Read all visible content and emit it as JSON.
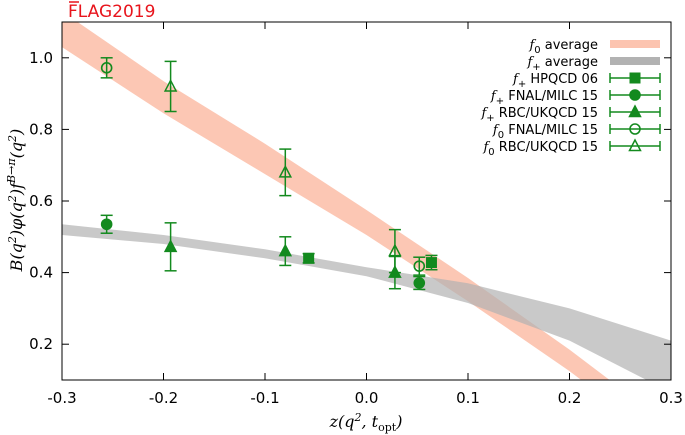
{
  "watermark": {
    "prefix": "FLAG",
    "year": "2019"
  },
  "chart_data": {
    "type": "scatter",
    "title": "",
    "xlabel": "z(q², t_opt)",
    "ylabel": "B(q²)φ(q²)f^{B→π}(q²)",
    "xlim": [
      -0.3,
      0.3
    ],
    "ylim": [
      0.1,
      1.1
    ],
    "xticks": [
      "-0.3",
      "-0.2",
      "-0.1",
      "0.0",
      "0.1",
      "0.2",
      "0.3"
    ],
    "yticks": [
      "0.2",
      "0.4",
      "0.6",
      "0.8",
      "1.0"
    ],
    "grid": false,
    "legend_position": "top-right",
    "bands": [
      {
        "name": "f0 average",
        "label_main": "f",
        "label_sub": "0",
        "label_rest": " average",
        "color": "#fcc4b0",
        "x": [
          -0.3,
          -0.2,
          -0.1,
          0.0,
          0.1,
          0.2,
          0.3
        ],
        "lower": [
          1.03,
          0.845,
          0.675,
          0.505,
          0.32,
          0.125,
          -0.09
        ],
        "upper": [
          1.13,
          0.935,
          0.76,
          0.575,
          0.385,
          0.185,
          -0.03
        ]
      },
      {
        "name": "f+ average",
        "label_main": "f",
        "label_sub": "+",
        "label_rest": " average",
        "color": "#b2b2b2",
        "x": [
          -0.3,
          -0.2,
          -0.1,
          0.0,
          0.1,
          0.2,
          0.3
        ],
        "lower": [
          0.505,
          0.48,
          0.44,
          0.39,
          0.315,
          0.21,
          0.065
        ],
        "upper": [
          0.535,
          0.505,
          0.465,
          0.415,
          0.37,
          0.3,
          0.21
        ]
      }
    ],
    "series": [
      {
        "name": "f+ HPQCD 06",
        "label_main": "f",
        "label_sub": "+",
        "label_rest": " HPQCD 06",
        "marker": "square-filled",
        "points": [
          {
            "x": -0.057,
            "y": 0.44,
            "err": 0.013
          },
          {
            "x": 0.064,
            "y": 0.428,
            "err": 0.02
          }
        ]
      },
      {
        "name": "f+ FNAL/MILC 15",
        "label_main": "f",
        "label_sub": "+",
        "label_rest": " FNAL/MILC 15",
        "marker": "circle-filled",
        "points": [
          {
            "x": -0.256,
            "y": 0.535,
            "err": 0.025
          },
          {
            "x": 0.052,
            "y": 0.371,
            "err": 0.018
          }
        ]
      },
      {
        "name": "f+ RBC/UKQCD 15",
        "label_main": "f",
        "label_sub": "+",
        "label_rest": " RBC/UKQCD 15",
        "marker": "triangle-filled",
        "points": [
          {
            "x": -0.193,
            "y": 0.472,
            "err": 0.067
          },
          {
            "x": -0.08,
            "y": 0.46,
            "err": 0.04
          },
          {
            "x": 0.028,
            "y": 0.4,
            "err": 0.045
          }
        ]
      },
      {
        "name": "f0 FNAL/MILC 15",
        "label_main": "f",
        "label_sub": "0",
        "label_rest": " FNAL/MILC 15",
        "marker": "circle-open",
        "points": [
          {
            "x": -0.256,
            "y": 0.972,
            "err": 0.028
          },
          {
            "x": 0.052,
            "y": 0.418,
            "err": 0.025
          }
        ]
      },
      {
        "name": "f0 RBC/UKQCD 15",
        "label_main": "f",
        "label_sub": "0",
        "label_rest": " RBC/UKQCD 15",
        "marker": "triangle-open",
        "points": [
          {
            "x": -0.193,
            "y": 0.92,
            "err": 0.07
          },
          {
            "x": -0.08,
            "y": 0.68,
            "err": 0.065
          },
          {
            "x": 0.028,
            "y": 0.46,
            "err": 0.06
          }
        ]
      }
    ],
    "colors": {
      "points": "#138a1e",
      "frame": "#000000",
      "watermark": "#e8141c"
    }
  }
}
